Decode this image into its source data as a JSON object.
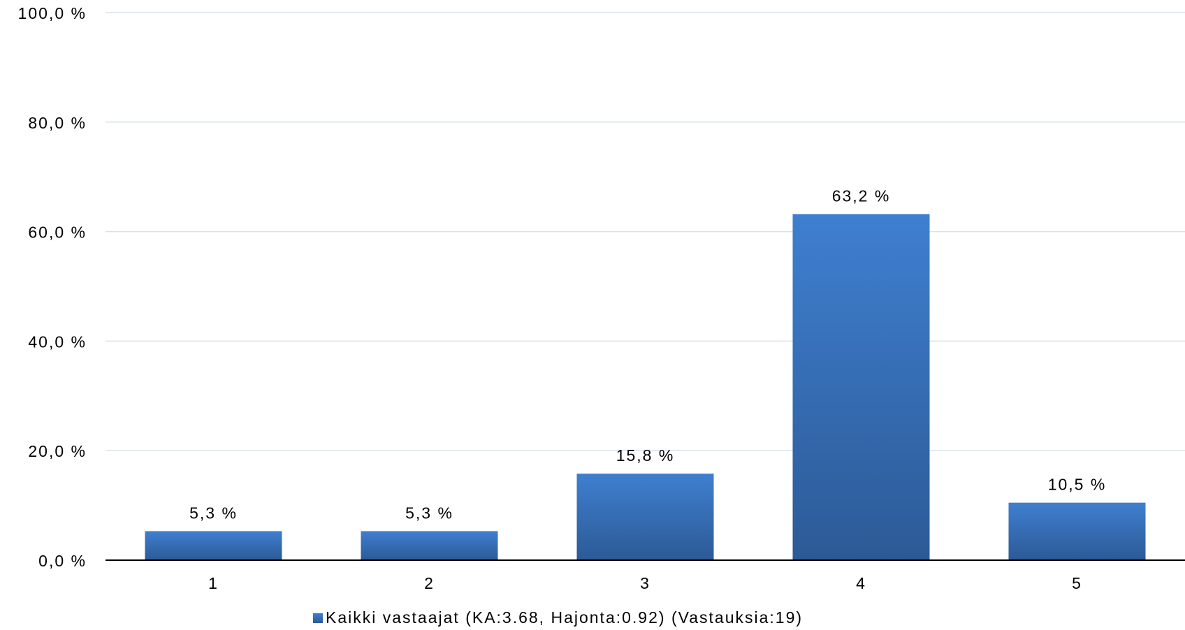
{
  "chart_data": {
    "type": "bar",
    "categories": [
      "1",
      "2",
      "3",
      "4",
      "5"
    ],
    "series": [
      {
        "name": "Kaikki vastaajat (KA:3.68, Hajonta:0.92) (Vastauksia:19)",
        "values": [
          5.3,
          5.3,
          15.8,
          63.2,
          10.5
        ],
        "value_labels": [
          "5,3 %",
          "5,3 %",
          "15,8 %",
          "63,2 %",
          "10,5 %"
        ]
      }
    ],
    "ylim": [
      0,
      100
    ],
    "yticks": [
      0,
      20,
      40,
      60,
      80,
      100
    ],
    "ytick_labels": [
      "0,0 %",
      "20,0 %",
      "40,0 %",
      "60,0 %",
      "80,0 %",
      "100,0 %"
    ],
    "title": "",
    "xlabel": "",
    "ylabel": "",
    "grid": true,
    "legend_position": "bottom",
    "colors": {
      "bar_top": "#3f7fd0",
      "bar_bottom": "#2c5a96",
      "grid": "#d9e2ec",
      "axis": "#000000"
    }
  }
}
